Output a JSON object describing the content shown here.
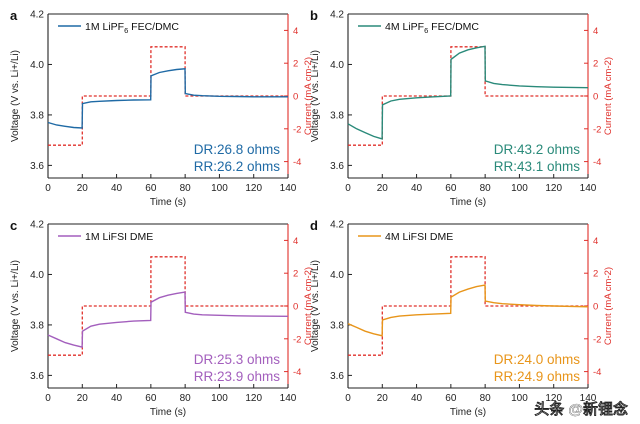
{
  "watermark": "头条 @新锂念",
  "chart_data": [
    {
      "type": "line",
      "panel_letter": "a",
      "legend": "1M LiPF",
      "legend_sub": "6",
      "legend_tail": " FEC/DMC",
      "color": "#1f6aa5",
      "xlabel": "Time (s)",
      "ylabel": "Voltage (V vs. Li+/Li)",
      "y2label": "Current (mA cm-2)",
      "xlim": [
        0,
        140
      ],
      "ylim": [
        3.55,
        4.2
      ],
      "y2lim": [
        -5,
        5
      ],
      "xticks": [
        "0",
        "20",
        "40",
        "60",
        "80",
        "100",
        "120",
        "140"
      ],
      "yticks": [
        "3.6",
        "3.8",
        "4.0",
        "4.2"
      ],
      "y2ticks": [
        "-4",
        "-2",
        "0",
        "2",
        "4"
      ],
      "dr_text": "DR:26.8 ohms",
      "rr_text": "RR:26.2 ohms",
      "voltage": [
        [
          0,
          3.77
        ],
        [
          5,
          3.76
        ],
        [
          10,
          3.755
        ],
        [
          15,
          3.75
        ],
        [
          19.9,
          3.748
        ],
        [
          20.1,
          3.845
        ],
        [
          25,
          3.852
        ],
        [
          30,
          3.854
        ],
        [
          40,
          3.857
        ],
        [
          50,
          3.859
        ],
        [
          59.9,
          3.86
        ],
        [
          60.1,
          3.955
        ],
        [
          65,
          3.968
        ],
        [
          70,
          3.975
        ],
        [
          75,
          3.98
        ],
        [
          79.9,
          3.983
        ],
        [
          80.1,
          3.885
        ],
        [
          85,
          3.878
        ],
        [
          90,
          3.876
        ],
        [
          100,
          3.874
        ],
        [
          110,
          3.873
        ],
        [
          120,
          3.872
        ],
        [
          140,
          3.872
        ]
      ],
      "current": [
        [
          0,
          -3
        ],
        [
          20,
          -3
        ],
        [
          20,
          0
        ],
        [
          60,
          0
        ],
        [
          60,
          3
        ],
        [
          80,
          3
        ],
        [
          80,
          0
        ],
        [
          140,
          0
        ]
      ]
    },
    {
      "type": "line",
      "panel_letter": "b",
      "legend": "4M LiPF",
      "legend_sub": "6",
      "legend_tail": " FEC/DMC",
      "color": "#2a8a7a",
      "xlabel": "Time (s)",
      "ylabel": "Voltage (V vs. Li+/Li)",
      "y2label": "Current (mA cm-2)",
      "xlim": [
        0,
        140
      ],
      "ylim": [
        3.55,
        4.2
      ],
      "y2lim": [
        -5,
        5
      ],
      "xticks": [
        "0",
        "20",
        "40",
        "60",
        "80",
        "100",
        "120",
        "140"
      ],
      "yticks": [
        "3.6",
        "3.8",
        "4.0",
        "4.2"
      ],
      "y2ticks": [
        "-4",
        "-2",
        "0",
        "2",
        "4"
      ],
      "dr_text": "DR:43.2 ohms",
      "rr_text": "RR:43.1 ohms",
      "voltage": [
        [
          0,
          3.765
        ],
        [
          5,
          3.745
        ],
        [
          10,
          3.73
        ],
        [
          15,
          3.715
        ],
        [
          19.9,
          3.705
        ],
        [
          20.1,
          3.84
        ],
        [
          25,
          3.855
        ],
        [
          30,
          3.862
        ],
        [
          40,
          3.868
        ],
        [
          50,
          3.872
        ],
        [
          59.9,
          3.875
        ],
        [
          60.1,
          4.02
        ],
        [
          65,
          4.045
        ],
        [
          70,
          4.058
        ],
        [
          75,
          4.066
        ],
        [
          79.9,
          4.072
        ],
        [
          80.1,
          3.935
        ],
        [
          85,
          3.925
        ],
        [
          90,
          3.92
        ],
        [
          100,
          3.915
        ],
        [
          110,
          3.912
        ],
        [
          120,
          3.91
        ],
        [
          140,
          3.908
        ]
      ],
      "current": [
        [
          0,
          -3
        ],
        [
          20,
          -3
        ],
        [
          20,
          0
        ],
        [
          60,
          0
        ],
        [
          60,
          3
        ],
        [
          80,
          3
        ],
        [
          80,
          0
        ],
        [
          140,
          0
        ]
      ]
    },
    {
      "type": "line",
      "panel_letter": "c",
      "legend": "1M LiFSI DME",
      "legend_sub": "",
      "legend_tail": "",
      "color": "#a35fbd",
      "xlabel": "Time (s)",
      "ylabel": "Voltage (V vs. Li+/Li)",
      "y2label": "Current (mA cm-2)",
      "xlim": [
        0,
        140
      ],
      "ylim": [
        3.55,
        4.2
      ],
      "y2lim": [
        -5,
        5
      ],
      "xticks": [
        "0",
        "20",
        "40",
        "60",
        "80",
        "100",
        "120",
        "140"
      ],
      "yticks": [
        "3.6",
        "3.8",
        "4.0",
        "4.2"
      ],
      "y2ticks": [
        "-4",
        "-2",
        "0",
        "2",
        "4"
      ],
      "dr_text": "DR:25.3 ohms",
      "rr_text": "RR:23.9 ohms",
      "voltage": [
        [
          0,
          3.76
        ],
        [
          5,
          3.745
        ],
        [
          10,
          3.73
        ],
        [
          15,
          3.72
        ],
        [
          19.9,
          3.712
        ],
        [
          20.1,
          3.775
        ],
        [
          25,
          3.795
        ],
        [
          30,
          3.803
        ],
        [
          40,
          3.81
        ],
        [
          50,
          3.815
        ],
        [
          59.9,
          3.818
        ],
        [
          60.1,
          3.89
        ],
        [
          65,
          3.908
        ],
        [
          70,
          3.918
        ],
        [
          75,
          3.925
        ],
        [
          79.9,
          3.93
        ],
        [
          80.1,
          3.85
        ],
        [
          85,
          3.843
        ],
        [
          90,
          3.84
        ],
        [
          100,
          3.838
        ],
        [
          110,
          3.836
        ],
        [
          120,
          3.835
        ],
        [
          140,
          3.834
        ]
      ],
      "current": [
        [
          0,
          -3
        ],
        [
          20,
          -3
        ],
        [
          20,
          0
        ],
        [
          60,
          0
        ],
        [
          60,
          3
        ],
        [
          80,
          3
        ],
        [
          80,
          0
        ],
        [
          140,
          0
        ]
      ]
    },
    {
      "type": "line",
      "panel_letter": "d",
      "legend": "4M LiFSI DME",
      "legend_sub": "",
      "legend_tail": "",
      "color": "#e8951a",
      "xlabel": "Time (s)",
      "ylabel": "Voltage (V vs. Li+/Li)",
      "y2label": "Current (mA cm-2)",
      "xlim": [
        0,
        140
      ],
      "ylim": [
        3.55,
        4.2
      ],
      "y2lim": [
        -5,
        5
      ],
      "xticks": [
        "0",
        "20",
        "40",
        "60",
        "80",
        "100",
        "120",
        "140"
      ],
      "yticks": [
        "3.6",
        "3.8",
        "4.0",
        "4.2"
      ],
      "y2ticks": [
        "-4",
        "-2",
        "0",
        "2",
        "4"
      ],
      "dr_text": "DR:24.0 ohms",
      "rr_text": "RR:24.9 ohms",
      "voltage": [
        [
          0,
          3.805
        ],
        [
          5,
          3.79
        ],
        [
          10,
          3.775
        ],
        [
          15,
          3.765
        ],
        [
          19.9,
          3.757
        ],
        [
          20.1,
          3.82
        ],
        [
          25,
          3.83
        ],
        [
          30,
          3.835
        ],
        [
          40,
          3.84
        ],
        [
          50,
          3.843
        ],
        [
          59.9,
          3.846
        ],
        [
          60.1,
          3.91
        ],
        [
          65,
          3.93
        ],
        [
          70,
          3.942
        ],
        [
          75,
          3.952
        ],
        [
          79.9,
          3.958
        ],
        [
          80.1,
          3.895
        ],
        [
          85,
          3.888
        ],
        [
          90,
          3.884
        ],
        [
          100,
          3.88
        ],
        [
          110,
          3.877
        ],
        [
          120,
          3.875
        ],
        [
          140,
          3.872
        ]
      ],
      "current": [
        [
          0,
          -3
        ],
        [
          20,
          -3
        ],
        [
          20,
          0
        ],
        [
          60,
          0
        ],
        [
          60,
          3
        ],
        [
          80,
          3
        ],
        [
          80,
          0
        ],
        [
          140,
          0
        ]
      ]
    }
  ]
}
